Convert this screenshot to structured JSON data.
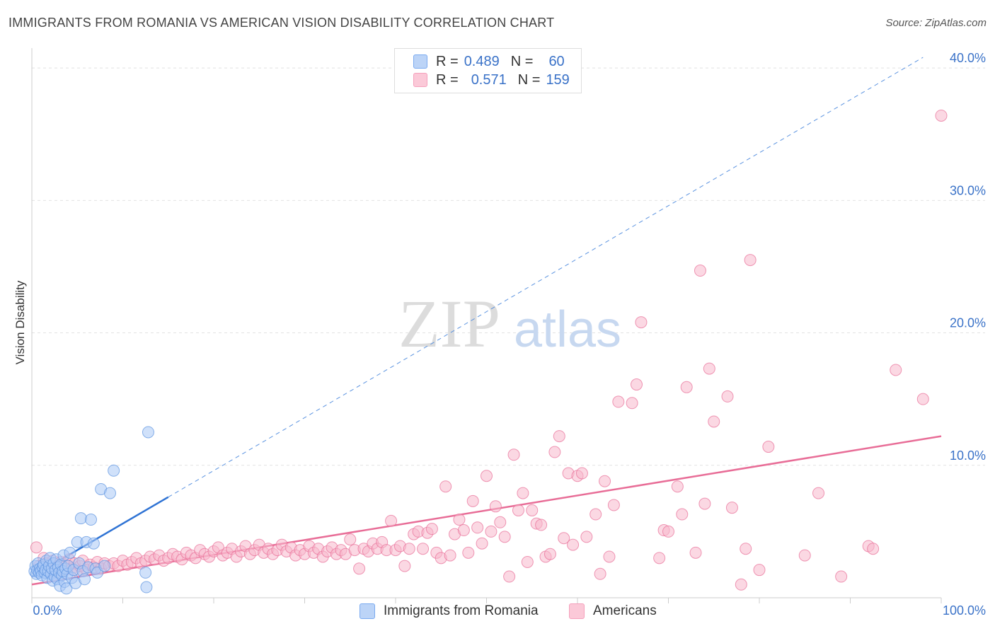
{
  "header": {
    "title": "IMMIGRANTS FROM ROMANIA VS AMERICAN VISION DISABILITY CORRELATION CHART",
    "source": "Source: ZipAtlas.com"
  },
  "watermark": {
    "zip": "ZIP",
    "atlas": "atlas"
  },
  "legend": {
    "rows": [
      {
        "r_label": "R =",
        "r_value": "0.489",
        "n_label": "N =",
        "n_value": "60",
        "color": "#7aaaf0"
      },
      {
        "r_label": "R =",
        "r_value": "0.571",
        "n_label": "N =",
        "n_value": "159",
        "color": "#f5a0bc"
      }
    ]
  },
  "chart_data": {
    "type": "scatter",
    "title": "IMMIGRANTS FROM ROMANIA VS AMERICAN VISION DISABILITY CORRELATION CHART",
    "xlabel": "",
    "ylabel": "Vision Disability",
    "xlim": [
      0,
      100
    ],
    "ylim": [
      0,
      41.5
    ],
    "x_tick_labels": [
      "0.0%",
      "100.0%"
    ],
    "y_ticks": [
      10,
      20,
      30,
      40
    ],
    "y_tick_labels": [
      "10.0%",
      "20.0%",
      "30.0%",
      "40.0%"
    ],
    "grid": true,
    "series": [
      {
        "name": "Immigrants from Romania",
        "color": "#5b93e0",
        "fill": "#aac8f5",
        "trend": {
          "x0": 0,
          "y0": 1.6,
          "x1": 15,
          "y1": 7.6,
          "dashed_to_x": 98,
          "dashed_to_y": 40.8
        },
        "points": [
          [
            0.3,
            2.0
          ],
          [
            0.4,
            2.4
          ],
          [
            0.5,
            1.8
          ],
          [
            0.6,
            2.1
          ],
          [
            0.7,
            2.6
          ],
          [
            0.8,
            1.9
          ],
          [
            0.9,
            2.2
          ],
          [
            1.0,
            2.0
          ],
          [
            1.1,
            1.7
          ],
          [
            1.2,
            2.3
          ],
          [
            1.3,
            2.5
          ],
          [
            1.4,
            1.9
          ],
          [
            1.5,
            2.1
          ],
          [
            1.6,
            2.8
          ],
          [
            1.7,
            1.5
          ],
          [
            1.8,
            2.0
          ],
          [
            1.9,
            2.4
          ],
          [
            2.0,
            3.0
          ],
          [
            2.1,
            1.8
          ],
          [
            2.2,
            2.2
          ],
          [
            2.3,
            1.3
          ],
          [
            2.4,
            2.6
          ],
          [
            2.5,
            1.6
          ],
          [
            2.6,
            2.1
          ],
          [
            2.7,
            2.9
          ],
          [
            2.8,
            1.4
          ],
          [
            2.9,
            2.3
          ],
          [
            3.0,
            1.9
          ],
          [
            3.1,
            0.9
          ],
          [
            3.2,
            2.5
          ],
          [
            3.3,
            1.7
          ],
          [
            3.4,
            2.0
          ],
          [
            3.5,
            3.2
          ],
          [
            3.6,
            1.2
          ],
          [
            3.7,
            2.2
          ],
          [
            3.8,
            0.7
          ],
          [
            3.9,
            1.8
          ],
          [
            4.0,
            2.4
          ],
          [
            4.2,
            3.4
          ],
          [
            4.4,
            1.5
          ],
          [
            4.6,
            2.1
          ],
          [
            4.8,
            1.1
          ],
          [
            5.0,
            4.2
          ],
          [
            5.2,
            2.6
          ],
          [
            5.4,
            6.0
          ],
          [
            5.6,
            2.0
          ],
          [
            5.8,
            1.4
          ],
          [
            6.0,
            4.2
          ],
          [
            6.2,
            2.3
          ],
          [
            6.5,
            5.9
          ],
          [
            6.8,
            4.1
          ],
          [
            7.0,
            2.2
          ],
          [
            7.2,
            1.9
          ],
          [
            7.6,
            8.2
          ],
          [
            8.0,
            2.4
          ],
          [
            8.6,
            7.9
          ],
          [
            9.0,
            9.6
          ],
          [
            12.5,
            1.9
          ],
          [
            12.6,
            0.8
          ],
          [
            12.8,
            12.5
          ]
        ]
      },
      {
        "name": "Americans",
        "color": "#e86d97",
        "fill": "#f7b8cc",
        "trend": {
          "x0": 0,
          "y0": 1.0,
          "x1": 100,
          "y1": 12.2
        },
        "points": [
          [
            0.5,
            3.8
          ],
          [
            0.8,
            2.4
          ],
          [
            1.0,
            2.2
          ],
          [
            1.3,
            3.0
          ],
          [
            1.6,
            2.6
          ],
          [
            2.0,
            2.1
          ],
          [
            2.3,
            2.8
          ],
          [
            2.6,
            1.9
          ],
          [
            2.9,
            2.3
          ],
          [
            3.2,
            2.7
          ],
          [
            3.5,
            2.0
          ],
          [
            3.8,
            2.5
          ],
          [
            4.1,
            2.9
          ],
          [
            4.4,
            2.2
          ],
          [
            4.7,
            2.6
          ],
          [
            5.0,
            2.0
          ],
          [
            5.3,
            2.4
          ],
          [
            5.6,
            2.8
          ],
          [
            6.0,
            2.1
          ],
          [
            6.4,
            2.5
          ],
          [
            6.8,
            2.3
          ],
          [
            7.2,
            2.7
          ],
          [
            7.6,
            2.2
          ],
          [
            8.0,
            2.6
          ],
          [
            8.5,
            2.4
          ],
          [
            9.0,
            2.6
          ],
          [
            9.5,
            2.4
          ],
          [
            10.0,
            2.8
          ],
          [
            10.5,
            2.5
          ],
          [
            11.0,
            2.7
          ],
          [
            11.5,
            3.0
          ],
          [
            12.0,
            2.6
          ],
          [
            12.5,
            2.8
          ],
          [
            13.0,
            3.1
          ],
          [
            13.5,
            2.9
          ],
          [
            14.0,
            3.2
          ],
          [
            14.5,
            2.8
          ],
          [
            15.0,
            3.0
          ],
          [
            15.5,
            3.3
          ],
          [
            16.0,
            3.1
          ],
          [
            16.5,
            2.9
          ],
          [
            17.0,
            3.4
          ],
          [
            17.5,
            3.2
          ],
          [
            18.0,
            3.0
          ],
          [
            18.5,
            3.6
          ],
          [
            19.0,
            3.3
          ],
          [
            19.5,
            3.1
          ],
          [
            20.0,
            3.5
          ],
          [
            20.5,
            3.8
          ],
          [
            21.0,
            3.2
          ],
          [
            21.5,
            3.4
          ],
          [
            22.0,
            3.7
          ],
          [
            22.5,
            3.1
          ],
          [
            23.0,
            3.5
          ],
          [
            23.5,
            3.9
          ],
          [
            24.0,
            3.3
          ],
          [
            24.5,
            3.6
          ],
          [
            25.0,
            4.0
          ],
          [
            25.5,
            3.4
          ],
          [
            26.0,
            3.7
          ],
          [
            26.5,
            3.3
          ],
          [
            27.0,
            3.6
          ],
          [
            27.5,
            4.0
          ],
          [
            28.0,
            3.5
          ],
          [
            28.5,
            3.8
          ],
          [
            29.0,
            3.2
          ],
          [
            29.5,
            3.6
          ],
          [
            30.0,
            3.3
          ],
          [
            30.5,
            3.9
          ],
          [
            31.0,
            3.4
          ],
          [
            31.5,
            3.7
          ],
          [
            32.0,
            3.1
          ],
          [
            32.5,
            3.5
          ],
          [
            33.0,
            3.8
          ],
          [
            33.5,
            3.3
          ],
          [
            34.0,
            3.6
          ],
          [
            34.5,
            3.3
          ],
          [
            35.0,
            4.4
          ],
          [
            35.5,
            3.6
          ],
          [
            36.0,
            2.2
          ],
          [
            36.5,
            3.7
          ],
          [
            37.0,
            3.5
          ],
          [
            37.5,
            4.1
          ],
          [
            38.0,
            3.7
          ],
          [
            38.5,
            4.2
          ],
          [
            39.0,
            3.6
          ],
          [
            39.5,
            5.8
          ],
          [
            40.0,
            3.6
          ],
          [
            40.5,
            3.9
          ],
          [
            41.0,
            2.4
          ],
          [
            41.5,
            3.7
          ],
          [
            42.0,
            4.8
          ],
          [
            42.5,
            5.0
          ],
          [
            43.0,
            3.7
          ],
          [
            43.5,
            4.9
          ],
          [
            44.0,
            5.2
          ],
          [
            44.5,
            3.4
          ],
          [
            45.0,
            3.0
          ],
          [
            45.5,
            8.4
          ],
          [
            46.0,
            3.2
          ],
          [
            46.5,
            4.8
          ],
          [
            47.0,
            5.9
          ],
          [
            47.5,
            5.1
          ],
          [
            48.0,
            3.4
          ],
          [
            48.5,
            7.3
          ],
          [
            49.0,
            5.3
          ],
          [
            49.5,
            4.1
          ],
          [
            50.0,
            9.2
          ],
          [
            50.5,
            5.0
          ],
          [
            51.0,
            6.9
          ],
          [
            51.5,
            5.7
          ],
          [
            52.0,
            4.6
          ],
          [
            52.5,
            1.6
          ],
          [
            53.0,
            10.8
          ],
          [
            53.5,
            6.6
          ],
          [
            54.0,
            7.9
          ],
          [
            54.5,
            2.7
          ],
          [
            55.0,
            6.6
          ],
          [
            55.5,
            5.6
          ],
          [
            56.0,
            5.5
          ],
          [
            56.5,
            3.1
          ],
          [
            57.0,
            3.3
          ],
          [
            57.5,
            11.0
          ],
          [
            58.0,
            12.2
          ],
          [
            58.5,
            4.5
          ],
          [
            59.0,
            9.4
          ],
          [
            59.5,
            4.0
          ],
          [
            60.0,
            9.2
          ],
          [
            60.5,
            9.4
          ],
          [
            61.0,
            4.6
          ],
          [
            62.0,
            6.3
          ],
          [
            62.5,
            1.8
          ],
          [
            63.0,
            8.8
          ],
          [
            63.5,
            3.1
          ],
          [
            64.0,
            7.0
          ],
          [
            64.5,
            14.8
          ],
          [
            66.0,
            14.7
          ],
          [
            66.5,
            16.1
          ],
          [
            67.0,
            20.8
          ],
          [
            69.0,
            3.0
          ],
          [
            69.5,
            5.1
          ],
          [
            70.0,
            5.0
          ],
          [
            71.0,
            8.4
          ],
          [
            71.5,
            6.3
          ],
          [
            72.0,
            15.9
          ],
          [
            73.0,
            3.4
          ],
          [
            73.5,
            24.7
          ],
          [
            74.0,
            7.1
          ],
          [
            74.5,
            17.3
          ],
          [
            75.0,
            13.3
          ],
          [
            76.5,
            15.2
          ],
          [
            77.0,
            6.8
          ],
          [
            78.0,
            1.0
          ],
          [
            78.5,
            3.7
          ],
          [
            79.0,
            25.5
          ],
          [
            80.0,
            2.1
          ],
          [
            81.0,
            11.4
          ],
          [
            85.0,
            3.2
          ],
          [
            86.5,
            7.9
          ],
          [
            89.0,
            1.6
          ],
          [
            92.0,
            3.9
          ],
          [
            92.5,
            3.7
          ],
          [
            95.0,
            17.2
          ],
          [
            98.0,
            15.0
          ],
          [
            100.0,
            36.4
          ]
        ]
      }
    ],
    "legend_entries": [
      "Immigrants from Romania",
      "Americans"
    ]
  }
}
